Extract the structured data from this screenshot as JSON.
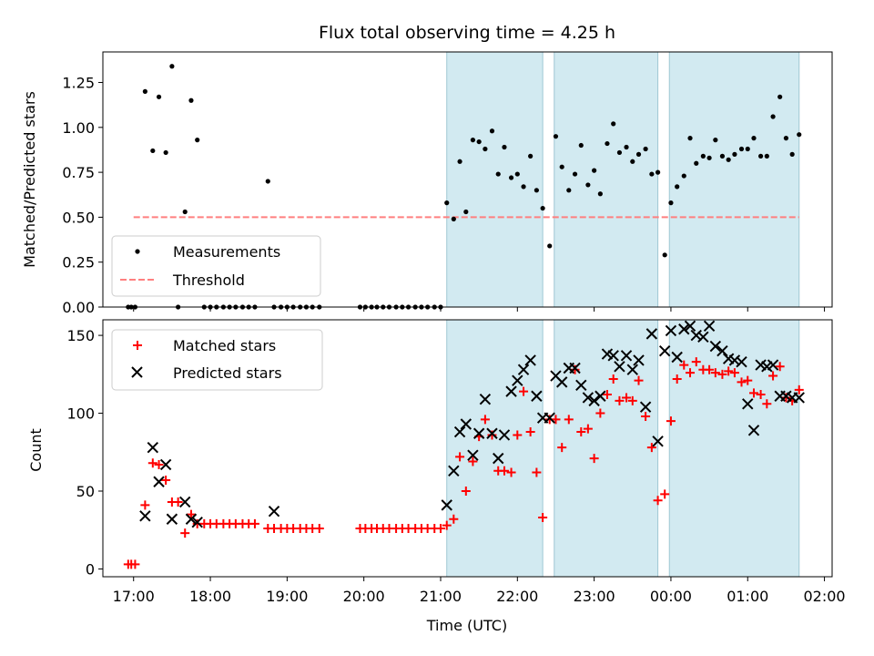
{
  "title": "Flux total observing time = 4.25 h",
  "colors": {
    "measurement": "#000000",
    "threshold": "#ff7f7f",
    "matched": "#ff0000",
    "predicted": "#000000",
    "shade": "#add8e6"
  },
  "chart_data": [
    {
      "type": "scatter",
      "title": "Flux total observing time = 4.25 h",
      "xlabel": "",
      "ylabel": "Matched/Predicted stars",
      "xlim": [
        16.6,
        26.1
      ],
      "ylim": [
        0,
        1.42
      ],
      "yticks": [
        0.0,
        0.25,
        0.5,
        0.75,
        1.0,
        1.25
      ],
      "ytick_labels": [
        "0.00",
        "0.25",
        "0.50",
        "0.75",
        "1.00",
        "1.25"
      ],
      "xticks": [
        17,
        18,
        19,
        20,
        21,
        22,
        23,
        24,
        25,
        26
      ],
      "shaded_intervals": [
        [
          21.08,
          22.33
        ],
        [
          22.48,
          23.83
        ],
        [
          23.98,
          25.67
        ]
      ],
      "legend": [
        "Measurements",
        "Threshold"
      ],
      "legend_loc": "lower-left",
      "threshold": {
        "name": "Threshold",
        "y": 0.5,
        "x_range": [
          17.0,
          25.67
        ]
      },
      "series": [
        {
          "name": "Measurements",
          "x": [
            16.93,
            16.97,
            17.02,
            17.15,
            17.25,
            17.33,
            17.42,
            17.5,
            17.58,
            17.67,
            17.75,
            17.83,
            17.92,
            18.0,
            18.08,
            18.17,
            18.25,
            18.33,
            18.42,
            18.5,
            18.58,
            18.75,
            18.83,
            18.92,
            19.0,
            19.08,
            19.17,
            19.25,
            19.33,
            19.42,
            19.95,
            20.02,
            20.1,
            20.17,
            20.25,
            20.33,
            20.42,
            20.5,
            20.58,
            20.67,
            20.75,
            20.83,
            20.92,
            21.0,
            21.08,
            21.17,
            21.25,
            21.33,
            21.42,
            21.5,
            21.58,
            21.67,
            21.75,
            21.83,
            21.92,
            22.0,
            22.08,
            22.17,
            22.25,
            22.33,
            22.42,
            22.5,
            22.58,
            22.67,
            22.75,
            22.83,
            22.92,
            23.0,
            23.08,
            23.17,
            23.25,
            23.33,
            23.42,
            23.5,
            23.58,
            23.67,
            23.75,
            23.83,
            23.92,
            24.0,
            24.08,
            24.17,
            24.25,
            24.33,
            24.42,
            24.5,
            24.58,
            24.67,
            24.75,
            24.83,
            24.92,
            25.0,
            25.08,
            25.17,
            25.25,
            25.33,
            25.42,
            25.5,
            25.58,
            25.67
          ],
          "y": [
            0,
            0,
            0,
            1.2,
            0.87,
            1.17,
            0.86,
            1.34,
            0,
            0.53,
            1.15,
            0.93,
            0,
            0,
            0,
            0,
            0,
            0,
            0,
            0,
            0,
            0.7,
            0,
            0,
            0,
            0,
            0,
            0,
            0,
            0,
            0,
            0,
            0,
            0,
            0,
            0,
            0,
            0,
            0,
            0,
            0,
            0,
            0,
            0,
            0.58,
            0.49,
            0.81,
            0.53,
            0.93,
            0.92,
            0.88,
            0.98,
            0.74,
            0.89,
            0.72,
            0.74,
            0.67,
            0.84,
            0.65,
            0.55,
            0.34,
            0.95,
            0.78,
            0.65,
            0.74,
            0.9,
            0.68,
            0.76,
            0.63,
            0.91,
            1.02,
            0.86,
            0.89,
            0.81,
            0.85,
            0.88,
            0.74,
            0.75,
            0.29,
            0.58,
            0.67,
            0.73,
            0.94,
            0.8,
            0.84,
            0.83,
            0.93,
            0.84,
            0.82,
            0.85,
            0.88,
            0.88,
            0.94,
            0.84,
            0.84,
            1.06,
            1.17,
            0.94,
            0.85,
            0.96
          ]
        }
      ]
    },
    {
      "type": "scatter",
      "title": "",
      "xlabel": "Time (UTC)",
      "ylabel": "Count",
      "xlim": [
        16.6,
        26.1
      ],
      "ylim": [
        -5,
        160
      ],
      "yticks": [
        0,
        50,
        100,
        150
      ],
      "ytick_labels": [
        "0",
        "50",
        "100",
        "150"
      ],
      "xticks": [
        17,
        18,
        19,
        20,
        21,
        22,
        23,
        24,
        25,
        26
      ],
      "xtick_labels": [
        "17:00",
        "18:00",
        "19:00",
        "20:00",
        "21:00",
        "22:00",
        "23:00",
        "00:00",
        "01:00",
        "02:00"
      ],
      "shaded_intervals": [
        [
          21.08,
          22.33
        ],
        [
          22.48,
          23.83
        ],
        [
          23.98,
          25.67
        ]
      ],
      "legend": [
        "Matched stars",
        "Predicted stars"
      ],
      "legend_loc": "top-left",
      "series": [
        {
          "name": "Matched stars",
          "marker": "+",
          "x": [
            16.93,
            16.97,
            17.02,
            17.15,
            17.25,
            17.33,
            17.42,
            17.5,
            17.58,
            17.67,
            17.75,
            17.83,
            17.92,
            18.0,
            18.08,
            18.17,
            18.25,
            18.33,
            18.42,
            18.5,
            18.58,
            18.75,
            18.83,
            18.92,
            19.0,
            19.08,
            19.17,
            19.25,
            19.33,
            19.42,
            19.95,
            20.02,
            20.1,
            20.17,
            20.25,
            20.33,
            20.42,
            20.5,
            20.58,
            20.67,
            20.75,
            20.83,
            20.92,
            21.0,
            21.08,
            21.17,
            21.25,
            21.33,
            21.42,
            21.5,
            21.58,
            21.67,
            21.75,
            21.83,
            21.92,
            22.0,
            22.08,
            22.17,
            22.25,
            22.33,
            22.42,
            22.5,
            22.58,
            22.67,
            22.75,
            22.83,
            22.92,
            23.0,
            23.08,
            23.17,
            23.25,
            23.33,
            23.42,
            23.5,
            23.58,
            23.67,
            23.75,
            23.83,
            23.92,
            24.0,
            24.08,
            24.17,
            24.25,
            24.33,
            24.42,
            24.5,
            24.58,
            24.67,
            24.75,
            24.83,
            24.92,
            25.0,
            25.08,
            25.17,
            25.25,
            25.33,
            25.42,
            25.5,
            25.58,
            25.67
          ],
          "y": [
            3,
            3,
            3,
            41,
            68,
            67,
            57,
            43,
            43,
            23,
            35,
            29,
            29,
            29,
            29,
            29,
            29,
            29,
            29,
            29,
            29,
            26,
            26,
            26,
            26,
            26,
            26,
            26,
            26,
            26,
            26,
            26,
            26,
            26,
            26,
            26,
            26,
            26,
            26,
            26,
            26,
            26,
            26,
            26,
            28,
            32,
            72,
            50,
            69,
            85,
            96,
            86,
            63,
            63,
            62,
            86,
            114,
            88,
            62,
            33,
            96,
            96,
            78,
            96,
            128,
            88,
            90,
            71,
            100,
            112,
            122,
            108,
            110,
            108,
            121,
            98,
            78,
            44,
            48,
            95,
            122,
            131,
            126,
            133,
            128,
            128,
            126,
            125,
            127,
            126,
            120,
            121,
            113,
            112,
            106,
            124,
            130,
            110,
            108,
            115
          ]
        },
        {
          "name": "Predicted stars",
          "marker": "x",
          "x": [
            17.15,
            17.25,
            17.33,
            17.42,
            17.5,
            17.67,
            17.75,
            17.83,
            18.83,
            21.08,
            21.17,
            21.25,
            21.33,
            21.42,
            21.5,
            21.58,
            21.67,
            21.75,
            21.83,
            21.92,
            22.0,
            22.08,
            22.17,
            22.25,
            22.33,
            22.42,
            22.5,
            22.58,
            22.67,
            22.75,
            22.83,
            22.92,
            23.0,
            23.08,
            23.17,
            23.25,
            23.33,
            23.42,
            23.5,
            23.58,
            23.67,
            23.75,
            23.83,
            23.92,
            24.0,
            24.08,
            24.17,
            24.25,
            24.33,
            24.42,
            24.5,
            24.58,
            24.67,
            24.75,
            24.83,
            24.92,
            25.0,
            25.08,
            25.17,
            25.25,
            25.33,
            25.42,
            25.5,
            25.58,
            25.67
          ],
          "y": [
            34,
            78,
            56,
            67,
            32,
            43,
            32,
            30,
            37,
            41,
            63,
            88,
            93,
            73,
            87,
            109,
            87,
            71,
            86,
            114,
            121,
            128,
            134,
            111,
            97,
            97,
            124,
            120,
            129,
            129,
            118,
            110,
            108,
            111,
            138,
            137,
            130,
            137,
            128,
            134,
            104,
            151,
            82,
            140,
            153,
            136,
            154,
            156,
            150,
            149,
            156,
            143,
            140,
            135,
            134,
            133,
            106,
            89,
            131,
            130,
            131,
            111,
            111,
            110,
            110
          ]
        }
      ]
    }
  ]
}
